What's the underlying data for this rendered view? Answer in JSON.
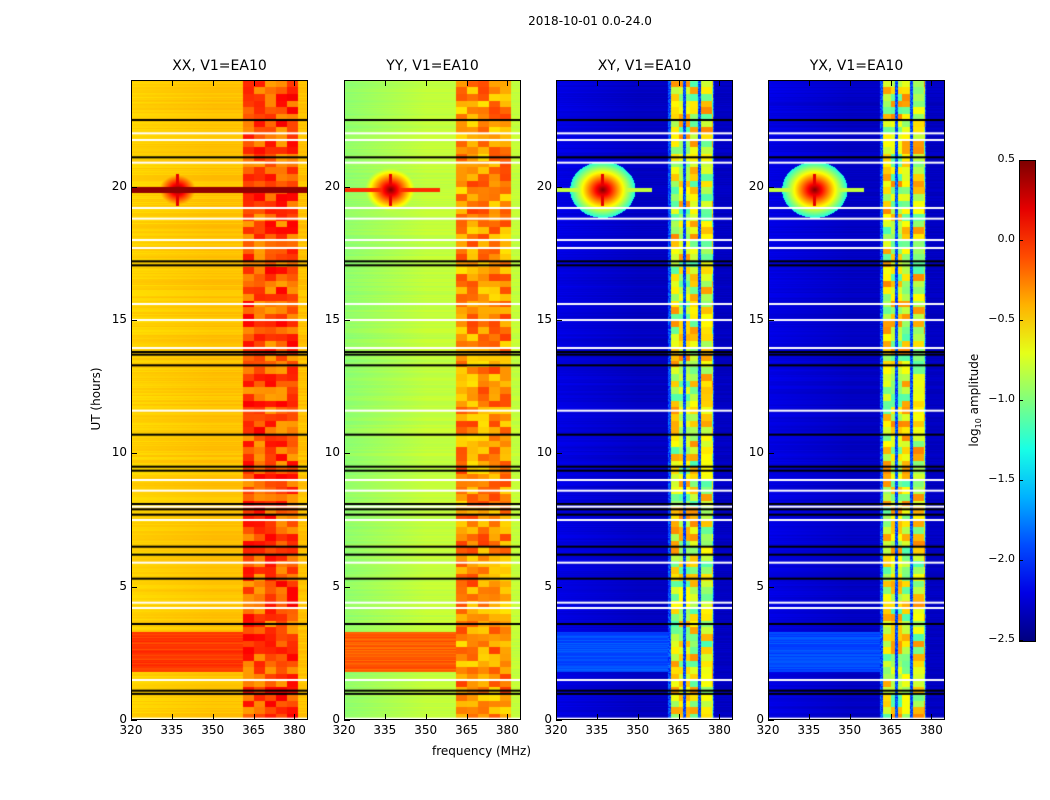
{
  "title": "2018-10-01 0.0-24.0",
  "xlabel": "frequency (MHz)",
  "ylabel": "UT (hours)",
  "colorbar": {
    "label_prefix": "log",
    "label_sub": "10",
    "label_suffix": " amplitude",
    "range": [
      -2.5,
      0.5
    ],
    "ticks": [
      "0.5",
      "0.0",
      "−0.5",
      "−1.0",
      "−1.5",
      "−2.0",
      "−2.5"
    ],
    "tick_values": [
      0.5,
      0.0,
      -0.5,
      -1.0,
      -1.5,
      -2.0,
      -2.5
    ],
    "colormap": "jet"
  },
  "chart_data": [
    {
      "type": "heatmap",
      "title": "XX, V1=EA10",
      "xlim": [
        320,
        385
      ],
      "ylim": [
        0,
        24
      ],
      "base_level": -0.45,
      "left_level": -0.5,
      "band_mhz": [
        361,
        381
      ],
      "band_level": -0.15,
      "strong_band_hours": [
        1.8,
        3.3
      ],
      "strong_band_level": -0.05,
      "flare": {
        "freq": 337,
        "hour": 19.9,
        "full_row": true
      }
    },
    {
      "type": "heatmap",
      "title": "YY, V1=EA10",
      "xlim": [
        320,
        385
      ],
      "ylim": [
        0,
        24
      ],
      "base_level": -0.8,
      "left_level": -0.95,
      "band_mhz": [
        361,
        381
      ],
      "band_level": -0.35,
      "strong_band_hours": [
        1.8,
        3.3
      ],
      "strong_band_level": -0.15,
      "flare": {
        "freq": 337,
        "hour": 19.9,
        "full_row": false
      }
    },
    {
      "type": "heatmap",
      "title": "XY, V1=EA10",
      "xlim": [
        320,
        385
      ],
      "ylim": [
        0,
        24
      ],
      "base_level": -2.3,
      "left_level": -2.2,
      "band_mhz": [
        361,
        378
      ],
      "band_level": -0.8,
      "strong_band_hours": [
        1.8,
        3.3
      ],
      "strong_band_level": -1.9,
      "flare": {
        "freq": 337,
        "hour": 19.9,
        "full_row": false
      }
    },
    {
      "type": "heatmap",
      "title": "YX, V1=EA10",
      "xlim": [
        320,
        385
      ],
      "ylim": [
        0,
        24
      ],
      "base_level": -2.3,
      "left_level": -2.2,
      "band_mhz": [
        361,
        378
      ],
      "band_level": -0.8,
      "strong_band_hours": [
        1.8,
        3.3
      ],
      "strong_band_level": -1.9,
      "flare": {
        "freq": 337,
        "hour": 19.9,
        "full_row": false
      }
    }
  ],
  "xticks": [
    "320",
    "335",
    "350",
    "365",
    "380"
  ],
  "xtick_values": [
    320,
    335,
    350,
    365,
    380
  ],
  "yticks": [
    "0",
    "5",
    "10",
    "15",
    "20"
  ],
  "ytick_values": [
    0,
    5,
    10,
    15,
    20
  ],
  "flagged_hours_black": [
    22.5,
    21.1,
    17.2,
    17.05,
    13.8,
    13.7,
    13.3,
    10.7,
    9.5,
    9.35,
    8.1,
    7.9,
    7.7,
    6.5,
    6.2,
    5.3,
    3.6,
    1.1,
    0.98
  ],
  "gap_hours_white": [
    22.0,
    21.75,
    20.9,
    19.2,
    18.8,
    18.0,
    17.7,
    15.6,
    15.0,
    13.95,
    11.6,
    9.0,
    8.6,
    8.0,
    7.5,
    5.9,
    4.4,
    4.2,
    1.5,
    0.05
  ]
}
